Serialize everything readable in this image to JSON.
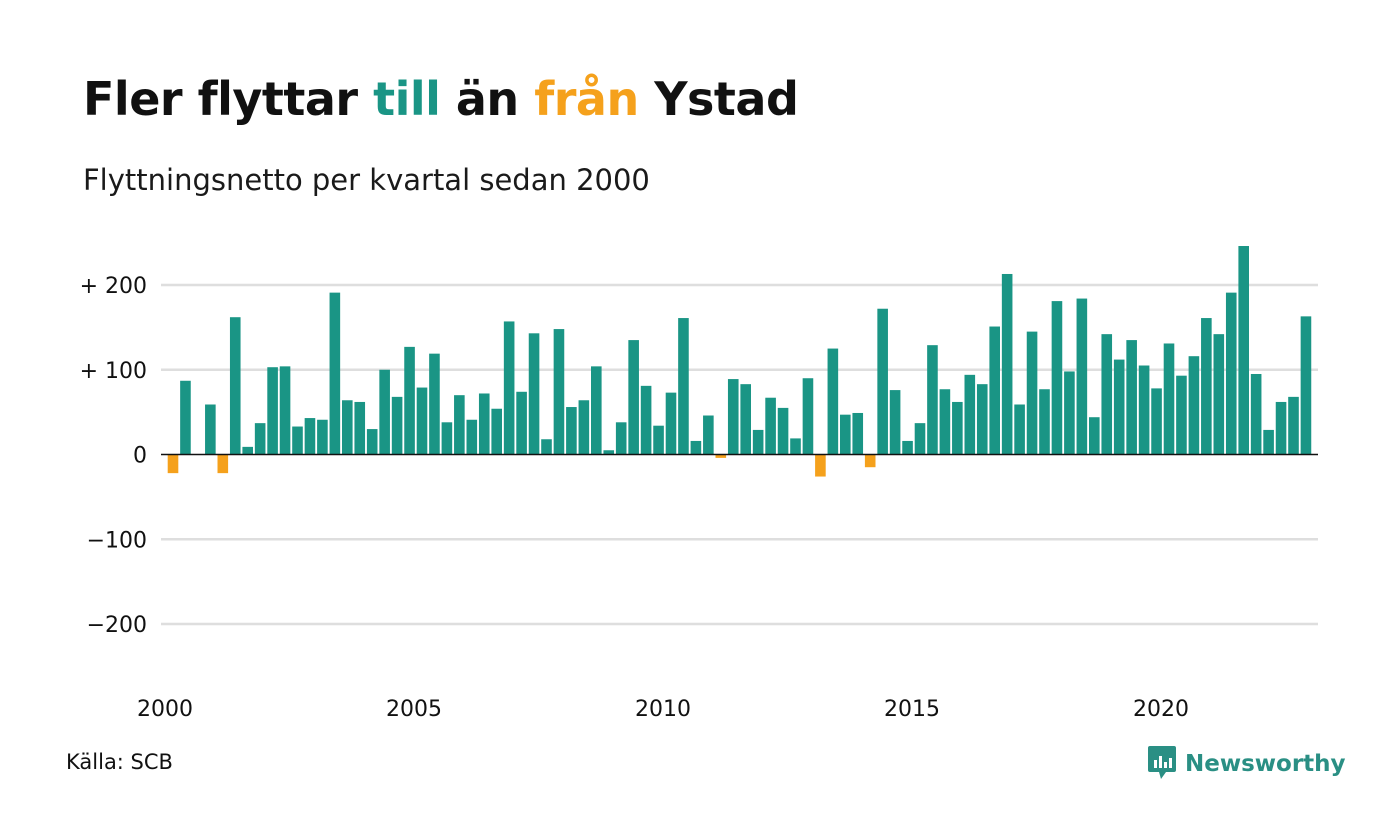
{
  "title": {
    "part1": "Fler flyttar ",
    "highlight_in": "till",
    "part2": " än ",
    "highlight_out": "från",
    "part3": " Ystad"
  },
  "subtitle": "Flyttningsnetto per kvartal sedan 2000",
  "source": "Källa: SCB",
  "brand": "Newsworthy",
  "colors": {
    "positive": "#1a9585",
    "negative": "#f5a11c",
    "gridline": "#dedede",
    "zero_line": "#111111",
    "brand": "#2a8f84"
  },
  "icons": {
    "brand_logo": "newsworthy-chart-icon"
  },
  "chart_data": {
    "type": "bar",
    "start_year": 2000,
    "x_ticks": [
      "2000",
      "2005",
      "2010",
      "2015",
      "2020"
    ],
    "y_ticks": [
      {
        "value": 200,
        "label": "+ 200"
      },
      {
        "value": 100,
        "label": "+ 100"
      },
      {
        "value": 0,
        "label": "0"
      },
      {
        "value": -100,
        "label": "−100"
      },
      {
        "value": -200,
        "label": "−200"
      }
    ],
    "ylim": [
      -270,
      260
    ],
    "grid": true,
    "values": [
      -22,
      87,
      0,
      59,
      -22,
      162,
      9,
      37,
      103,
      104,
      33,
      43,
      41,
      191,
      64,
      62,
      30,
      100,
      68,
      127,
      79,
      119,
      38,
      70,
      41,
      72,
      54,
      157,
      74,
      143,
      18,
      148,
      56,
      64,
      104,
      5,
      38,
      135,
      81,
      34,
      73,
      161,
      16,
      46,
      -4,
      89,
      83,
      29,
      67,
      55,
      19,
      90,
      -26,
      125,
      47,
      49,
      -15,
      172,
      76,
      16,
      37,
      129,
      77,
      62,
      94,
      83,
      151,
      213,
      59,
      145,
      77,
      181,
      98,
      184,
      44,
      142,
      112,
      135,
      105,
      78,
      131,
      93,
      116,
      161,
      142,
      191,
      246,
      95,
      29,
      62,
      68,
      163
    ]
  }
}
